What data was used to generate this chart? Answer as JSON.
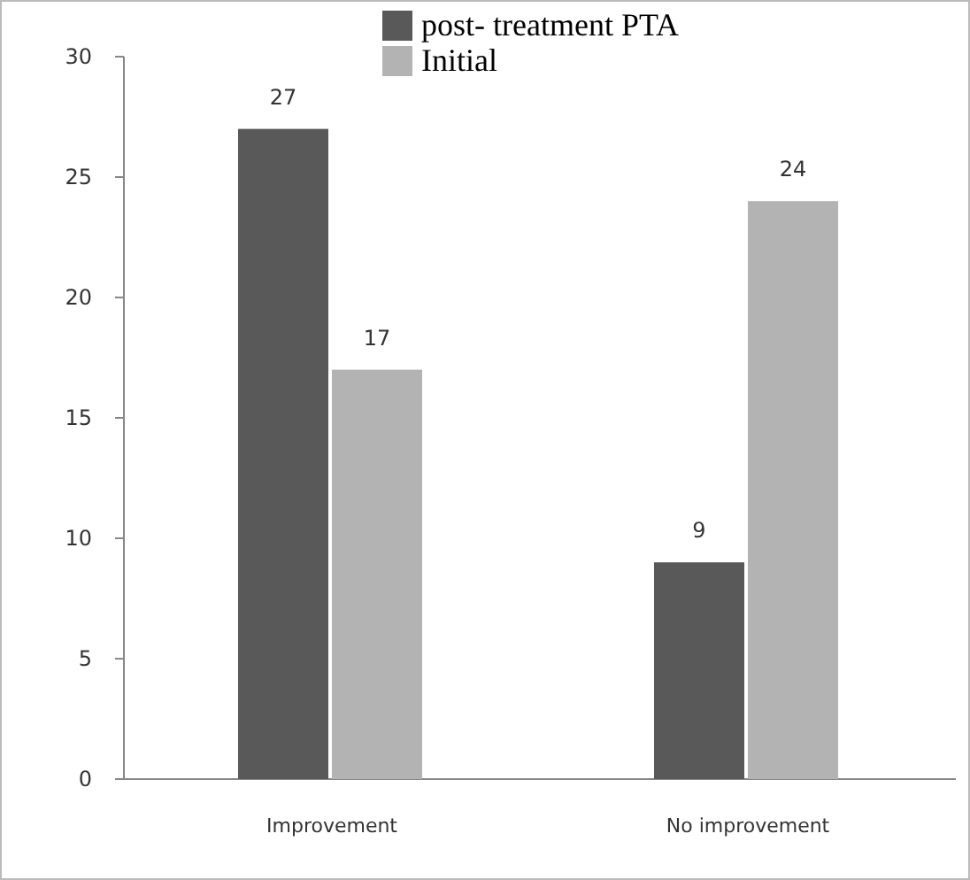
{
  "chart_data": {
    "type": "bar",
    "categories": [
      "Improvement",
      "No improvement"
    ],
    "series": [
      {
        "name": "post- treatment PTA",
        "color": "#595959",
        "values": [
          27,
          9
        ]
      },
      {
        "name": "Initial",
        "color": "#b3b3b3",
        "values": [
          17,
          24
        ]
      }
    ],
    "ylim": [
      0,
      30
    ],
    "yticks": [
      0,
      5,
      10,
      15,
      20,
      25,
      30
    ],
    "data_labels": true,
    "legend": "top",
    "grid": false
  }
}
